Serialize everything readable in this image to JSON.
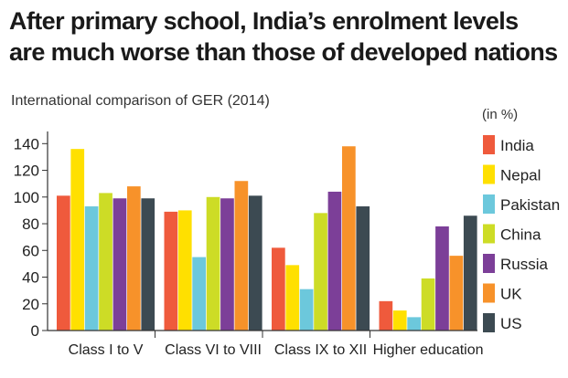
{
  "chart_data": {
    "type": "bar",
    "title": "After primary school, India’s enrolment levels are much worse than those of developed nations",
    "subtitle": "International comparison of GER (2014)",
    "unit": "(in %)",
    "categories": [
      "Class I to V",
      "Class VI to VIII",
      "Class IX to XII",
      "Higher education"
    ],
    "yticks": [
      0,
      20,
      40,
      60,
      80,
      100,
      120,
      140
    ],
    "ylim": [
      0,
      145
    ],
    "grid": false,
    "legend": "right",
    "series": [
      {
        "name": "India",
        "color": "#ef5a3c",
        "values": [
          101,
          89,
          62,
          22
        ]
      },
      {
        "name": "Nepal",
        "color": "#ffe000",
        "values": [
          136,
          90,
          49,
          15
        ]
      },
      {
        "name": "Pakistan",
        "color": "#6cc8dc",
        "values": [
          93,
          55,
          31,
          10
        ]
      },
      {
        "name": "China",
        "color": "#cddc26",
        "values": [
          103,
          100,
          88,
          39
        ]
      },
      {
        "name": "Russia",
        "color": "#7c3f98",
        "values": [
          99,
          99,
          104,
          78
        ]
      },
      {
        "name": "UK",
        "color": "#f7922a",
        "values": [
          108,
          112,
          138,
          56
        ]
      },
      {
        "name": "US",
        "color": "#3c4a52",
        "values": [
          99,
          101,
          93,
          86
        ]
      }
    ]
  }
}
